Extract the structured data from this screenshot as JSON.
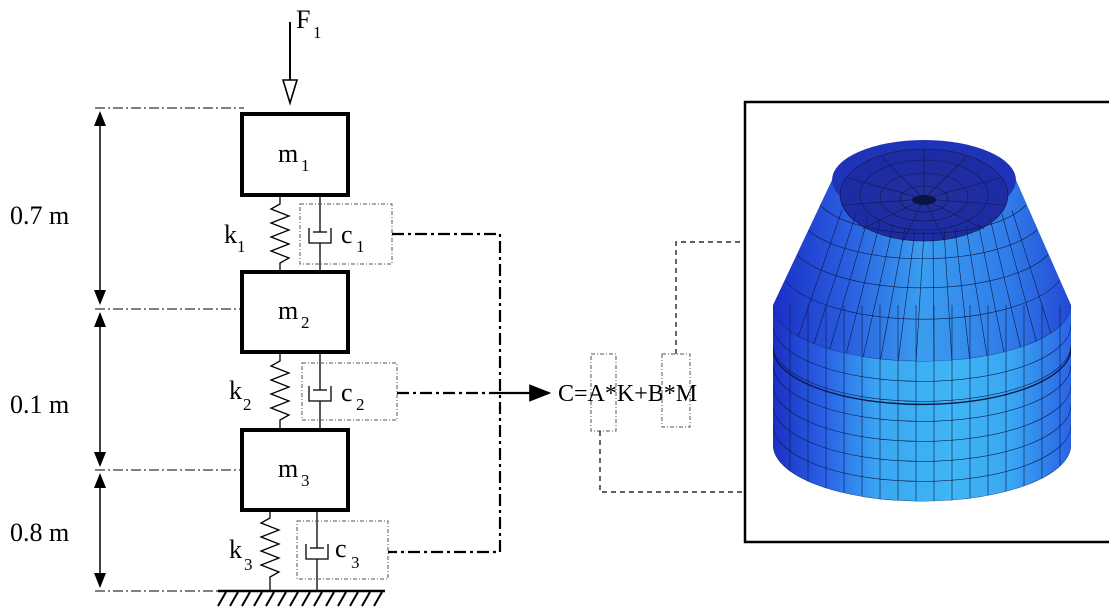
{
  "force": {
    "label": "F",
    "sub": "1"
  },
  "masses": [
    {
      "label": "m",
      "sub": "1"
    },
    {
      "label": "m",
      "sub": "2"
    },
    {
      "label": "m",
      "sub": "3"
    }
  ],
  "springs": [
    {
      "label": "k",
      "sub": "1"
    },
    {
      "label": "k",
      "sub": "2"
    },
    {
      "label": "k",
      "sub": "3"
    }
  ],
  "dampers": [
    {
      "label": "c",
      "sub": "1"
    },
    {
      "label": "c",
      "sub": "2"
    },
    {
      "label": "c",
      "sub": "3"
    }
  ],
  "dimensions": [
    "0.7 m",
    "0.1 m",
    "0.8 m"
  ],
  "equation": "C=A*K+B*M",
  "colors": {
    "mesh_dark": "#1b2fc4",
    "mesh_mid": "#2a63e6",
    "mesh_light": "#3aa6f2",
    "mesh_top": "#1a2a9a"
  }
}
